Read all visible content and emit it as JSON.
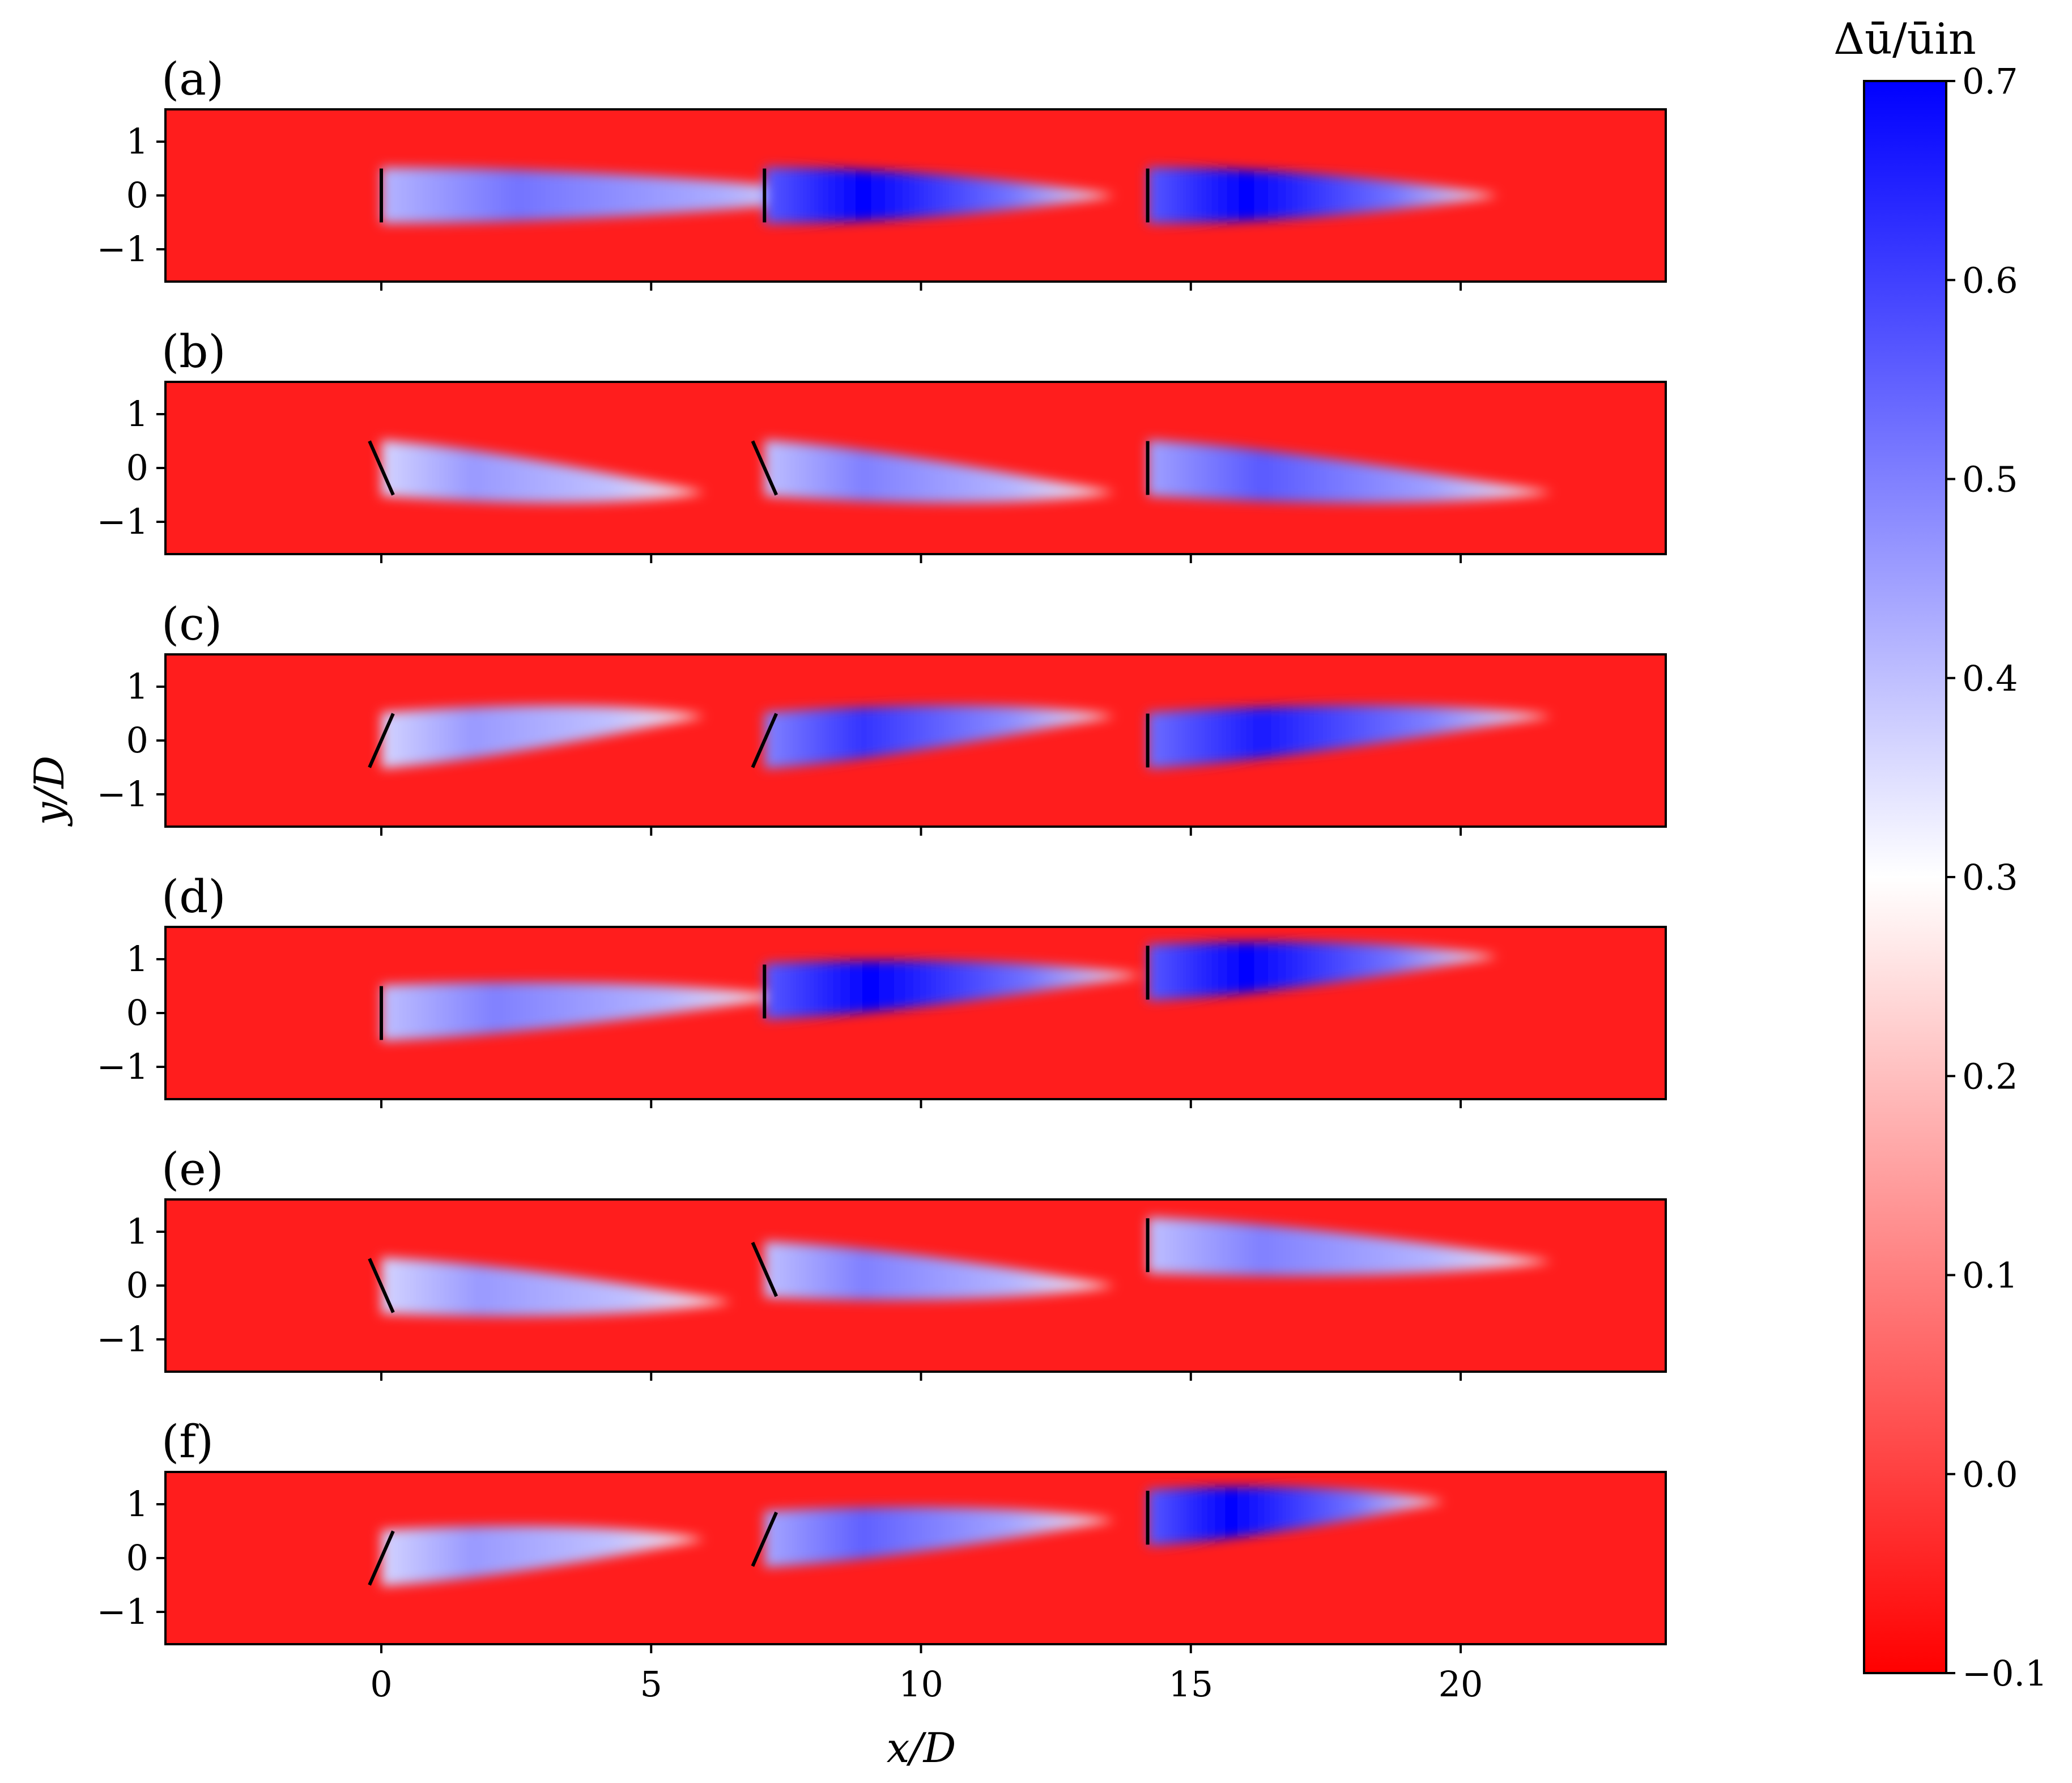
{
  "chart_data": {
    "type": "heatmap",
    "xlabel": "x/D",
    "ylabel": "y/D",
    "xlim": [
      -4,
      23.8
    ],
    "ylim": [
      -1.6,
      1.6
    ],
    "x_ticks": [
      0,
      5,
      10,
      15,
      20
    ],
    "y_ticks": [
      -1,
      0,
      1
    ],
    "x_tick_labels": [
      "0",
      "5",
      "10",
      "15",
      "20"
    ],
    "y_tick_labels": [
      "−1",
      "0",
      "1"
    ],
    "colorbar": {
      "title": "Δū/ūin",
      "min": -0.1,
      "max": 0.7,
      "ticks": [
        -0.1,
        0.0,
        0.1,
        0.2,
        0.3,
        0.4,
        0.5,
        0.6,
        0.7
      ],
      "tick_labels": [
        "−0.1",
        "0.0",
        "0.1",
        "0.2",
        "0.3",
        "0.4",
        "0.5",
        "0.6",
        "0.7"
      ],
      "colors": {
        "low": "#ff0000",
        "mid": "#ffffff",
        "high": "#0000ff"
      },
      "mid_value": 0.3
    },
    "panels": [
      {
        "label": "(a)",
        "turbines": [
          {
            "x": 0.0,
            "y": 0.0,
            "tilt": 0,
            "peak": 0.52,
            "length": 9.0,
            "drift": 0.0
          },
          {
            "x": 7.1,
            "y": 0.0,
            "tilt": 0,
            "peak": 0.7,
            "length": 6.5,
            "drift": 0.0
          },
          {
            "x": 14.2,
            "y": 0.0,
            "tilt": 0,
            "peak": 0.7,
            "length": 6.5,
            "drift": 0.0
          }
        ]
      },
      {
        "label": "(b)",
        "turbines": [
          {
            "x": 0.0,
            "y": 0.0,
            "tilt": 1,
            "peak": 0.46,
            "length": 6.0,
            "drift": -0.45
          },
          {
            "x": 7.1,
            "y": 0.0,
            "tilt": 1,
            "peak": 0.5,
            "length": 6.5,
            "drift": -0.45
          },
          {
            "x": 14.2,
            "y": 0.0,
            "tilt": 0,
            "peak": 0.56,
            "length": 7.5,
            "drift": -0.45
          }
        ]
      },
      {
        "label": "(c)",
        "turbines": [
          {
            "x": 0.0,
            "y": 0.0,
            "tilt": -1,
            "peak": 0.46,
            "length": 6.0,
            "drift": 0.45
          },
          {
            "x": 7.1,
            "y": 0.0,
            "tilt": -1,
            "peak": 0.62,
            "length": 6.5,
            "drift": 0.45
          },
          {
            "x": 14.2,
            "y": 0.0,
            "tilt": 0,
            "peak": 0.66,
            "length": 7.5,
            "drift": 0.45
          }
        ]
      },
      {
        "label": "(d)",
        "turbines": [
          {
            "x": 0.0,
            "y": 0.0,
            "tilt": 0,
            "peak": 0.5,
            "length": 7.5,
            "drift": 0.3
          },
          {
            "x": 7.1,
            "y": 0.4,
            "tilt": 0,
            "peak": 0.7,
            "length": 7.0,
            "drift": 0.3
          },
          {
            "x": 14.2,
            "y": 0.75,
            "tilt": 0,
            "peak": 0.7,
            "length": 6.5,
            "drift": 0.3
          }
        ]
      },
      {
        "label": "(e)",
        "turbines": [
          {
            "x": 0.0,
            "y": 0.0,
            "tilt": 1,
            "peak": 0.46,
            "length": 6.5,
            "drift": -0.3
          },
          {
            "x": 7.1,
            "y": 0.3,
            "tilt": 1,
            "peak": 0.5,
            "length": 6.5,
            "drift": -0.3
          },
          {
            "x": 14.2,
            "y": 0.75,
            "tilt": 0,
            "peak": 0.5,
            "length": 7.5,
            "drift": -0.3
          }
        ]
      },
      {
        "label": "(f)",
        "turbines": [
          {
            "x": 0.0,
            "y": 0.0,
            "tilt": -1,
            "peak": 0.46,
            "length": 6.0,
            "drift": 0.35
          },
          {
            "x": 7.1,
            "y": 0.35,
            "tilt": -1,
            "peak": 0.55,
            "length": 6.5,
            "drift": 0.35
          },
          {
            "x": 14.2,
            "y": 0.75,
            "tilt": 0,
            "peak": 0.7,
            "length": 5.5,
            "drift": 0.3
          }
        ]
      }
    ]
  }
}
